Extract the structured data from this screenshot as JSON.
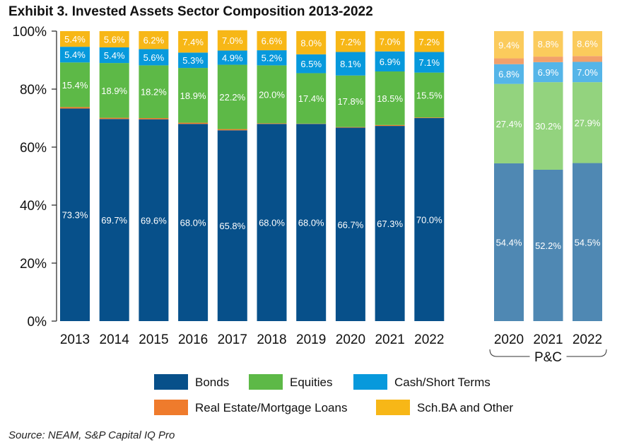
{
  "title": "Exhibit 3. Invested Assets Sector Composition 2013-2022",
  "source": "Source: NEAM, S&P Capital IQ Pro",
  "chart_data": {
    "type": "bar",
    "stacked": true,
    "ylim": [
      0,
      100
    ],
    "yticks": [
      "0%",
      "20%",
      "40%",
      "60%",
      "80%",
      "100%"
    ],
    "grid": false,
    "legend_position": "bottom",
    "groups": [
      {
        "name": "",
        "categories": [
          "2013",
          "2014",
          "2015",
          "2016",
          "2017",
          "2018",
          "2019",
          "2020",
          "2021",
          "2022"
        ],
        "series": [
          {
            "name": "Bonds",
            "color": "#07508A",
            "values": [
              73.3,
              69.7,
              69.6,
              68.0,
              65.8,
              68.0,
              68.0,
              66.7,
              67.3,
              70.0
            ],
            "labels": [
              "73.3%",
              "69.7%",
              "69.6%",
              "68.0%",
              "65.8%",
              "68.0%",
              "68.0%",
              "66.7%",
              "67.3%",
              "70.0%"
            ]
          },
          {
            "name": "Real Estate/Mortgage Loans",
            "color": "#EF7B2C",
            "values": [
              0.5,
              0.4,
              0.4,
              0.4,
              0.4,
              0.2,
              0.1,
              0.2,
              0.3,
              0.2
            ],
            "labels": [
              "",
              "",
              "",
              "",
              "",
              "",
              "",
              "",
              "",
              ""
            ]
          },
          {
            "name": "Equities",
            "color": "#5DB947",
            "values": [
              15.4,
              18.9,
              18.2,
              18.9,
              22.2,
              20.0,
              17.4,
              17.8,
              18.5,
              15.5
            ],
            "labels": [
              "15.4%",
              "18.9%",
              "18.2%",
              "18.9%",
              "22.2%",
              "20.0%",
              "17.4%",
              "17.8%",
              "18.5%",
              "15.5%"
            ]
          },
          {
            "name": "Cash/Short Terms",
            "color": "#0799DC",
            "values": [
              5.4,
              5.4,
              5.6,
              5.3,
              4.9,
              5.2,
              6.5,
              8.1,
              6.9,
              7.1
            ],
            "labels": [
              "5.4%",
              "5.4%",
              "5.6%",
              "5.3%",
              "4.9%",
              "5.2%",
              "6.5%",
              "8.1%",
              "6.9%",
              "7.1%"
            ]
          },
          {
            "name": "Sch.BA and Other",
            "color": "#F7B717",
            "values": [
              5.4,
              5.6,
              6.2,
              7.4,
              7.0,
              6.6,
              8.0,
              7.2,
              7.0,
              7.2
            ],
            "labels": [
              "5.4%",
              "5.6%",
              "6.2%",
              "7.4%",
              "7.0%",
              "6.6%",
              "8.0%",
              "7.2%",
              "7.0%",
              "7.2%"
            ]
          }
        ]
      },
      {
        "name": "P&C",
        "categories": [
          "2020",
          "2021",
          "2022"
        ],
        "series": [
          {
            "name": "Bonds",
            "color": "#4F88B3",
            "values": [
              54.4,
              52.2,
              54.5
            ],
            "labels": [
              "54.4%",
              "52.2%",
              "54.5%"
            ]
          },
          {
            "name": "Equities",
            "color": "#93D37E",
            "values": [
              27.4,
              30.2,
              27.9
            ],
            "labels": [
              "27.4%",
              "30.2%",
              "27.9%"
            ]
          },
          {
            "name": "Cash/Short Terms",
            "color": "#55B5E8",
            "values": [
              6.8,
              6.9,
              7.0
            ],
            "labels": [
              "6.8%",
              "6.9%",
              "7.0%"
            ]
          },
          {
            "name": "Real Estate/Mortgage Loans",
            "color": "#F2A06A",
            "values": [
              2.0,
              1.9,
              2.0
            ],
            "labels": [
              "",
              "",
              ""
            ]
          },
          {
            "name": "Sch.BA and Other",
            "color": "#FBCB5C",
            "values": [
              9.4,
              8.8,
              8.6
            ],
            "labels": [
              "9.4%",
              "8.8%",
              "8.6%"
            ]
          }
        ]
      }
    ],
    "legend": [
      {
        "label": "Bonds",
        "color": "#07508A"
      },
      {
        "label": "Equities",
        "color": "#5DB947"
      },
      {
        "label": "Cash/Short Terms",
        "color": "#0799DC"
      },
      {
        "label": "Real Estate/Mortgage Loans",
        "color": "#EF7B2C"
      },
      {
        "label": "Sch.BA and Other",
        "color": "#F7B717"
      }
    ]
  }
}
